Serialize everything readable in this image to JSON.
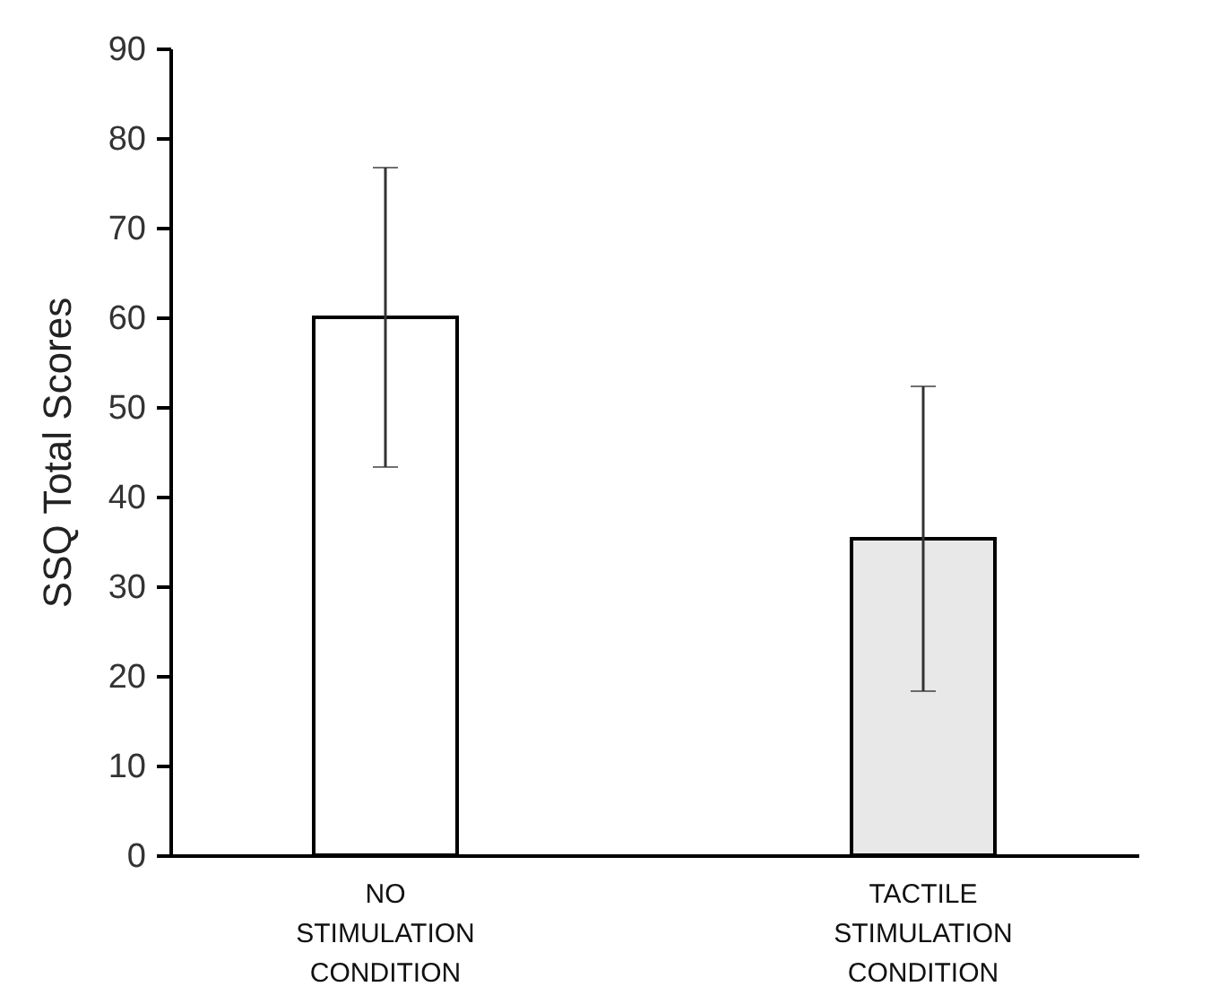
{
  "chart_data": {
    "type": "bar",
    "ylabel": "SSQ  Total Scores",
    "categories": [
      "NO STIMULATION CONDITION",
      "TACTILE STIMULATION CONDITION"
    ],
    "values": [
      60,
      35.3
    ],
    "colors": [
      "#ffffff",
      "#e8e8e8"
    ],
    "errors": [
      16.7,
      17
    ],
    "ylim": [
      0,
      90
    ],
    "yticks": [
      0,
      10,
      20,
      30,
      40,
      50,
      60,
      70,
      80,
      90
    ],
    "grid": false,
    "legend": false
  }
}
